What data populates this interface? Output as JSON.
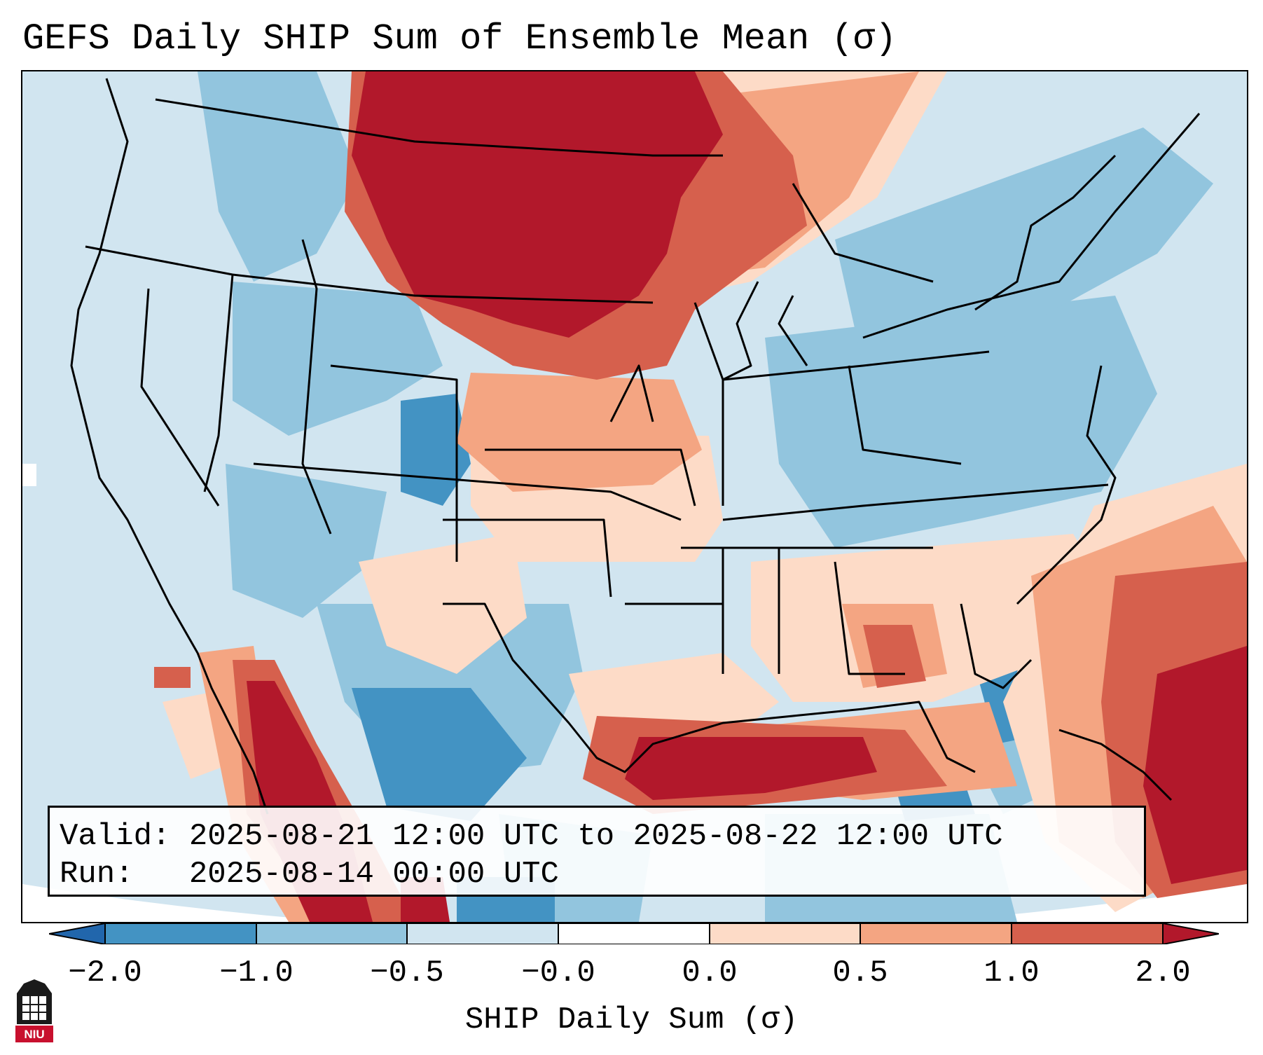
{
  "title": "GEFS Daily SHIP Sum of Ensemble Mean (σ)",
  "info": {
    "valid_line": "Valid: 2025-08-21 12:00 UTC to 2025-08-22 12:00 UTC",
    "run_line": "Run:   2025-08-14 00:00 UTC"
  },
  "colorbar": {
    "label": "SHIP Daily Sum (σ)",
    "ticks": [
      "−2.0",
      "−1.0",
      "−0.5",
      "−0.0",
      "0.0",
      "0.5",
      "1.0",
      "2.0"
    ],
    "colors": [
      "#2166ac",
      "#4393c3",
      "#92c5de",
      "#d1e5f0",
      "#fddbc7",
      "#f4a582",
      "#d6604d",
      "#b2182b"
    ],
    "extend": "both"
  },
  "map_colors": {
    "ocean_base": "#d1e5f0",
    "strong_negative": "#2166ac",
    "negative": "#4393c3",
    "weak_negative": "#92c5de",
    "near_zero_negative": "#d1e5f0",
    "near_zero_positive": "#fddbc7",
    "weak_positive": "#f4a582",
    "positive": "#d6604d",
    "strong_positive": "#b2182b"
  },
  "logo": {
    "name": "niu-logo",
    "text": "NIU"
  }
}
